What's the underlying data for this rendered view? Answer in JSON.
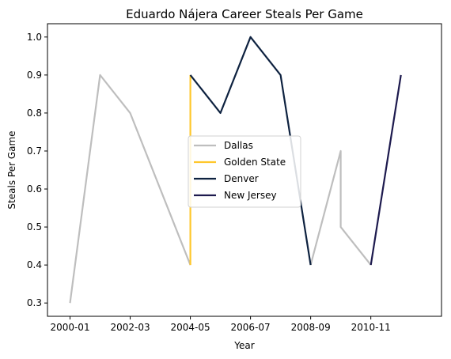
{
  "chart_data": {
    "type": "line",
    "title": "Eduardo Nájera Career Steals Per Game",
    "xlabel": "Year",
    "ylabel": "Steals Per Game",
    "xlim": [
      "1999-09",
      "2012-03"
    ],
    "ylim": [
      0.265,
      1.035
    ],
    "x_ticks": [
      "2000-01",
      "2002-03",
      "2004-05",
      "2006-07",
      "2008-09",
      "2010-11"
    ],
    "y_ticks": [
      0.3,
      0.4,
      0.5,
      0.6,
      0.7,
      0.8,
      0.9,
      1.0
    ],
    "grid": false,
    "legend_position": "center",
    "series": [
      {
        "name": "Dallas",
        "color": "#BEBEBE",
        "segments": [
          [
            [
              "2000-01",
              0.3
            ],
            [
              "2001-02",
              0.9
            ],
            [
              "2002-03",
              0.8
            ],
            [
              "2004-05",
              0.4
            ]
          ],
          [
            [
              "2008-09",
              0.4
            ],
            [
              "2009-10",
              0.7
            ],
            [
              "2009-10",
              0.5
            ],
            [
              "2010-11",
              0.4
            ]
          ]
        ]
      },
      {
        "name": "Golden State",
        "color": "#FFC72C",
        "segments": [
          [
            [
              "2004-05",
              0.4
            ],
            [
              "2004-05",
              0.9
            ]
          ]
        ]
      },
      {
        "name": "Denver",
        "color": "#0E2240",
        "segments": [
          [
            [
              "2004-05",
              0.9
            ],
            [
              "2005-06",
              0.8
            ],
            [
              "2006-07",
              1.0
            ],
            [
              "2007-08",
              0.9
            ],
            [
              "2008-09",
              0.4
            ]
          ]
        ]
      },
      {
        "name": "New Jersey",
        "color": "#1D1A4E",
        "segments": [
          [
            [
              "2010-11",
              0.4
            ],
            [
              "2011-12",
              0.9
            ]
          ]
        ]
      }
    ]
  }
}
